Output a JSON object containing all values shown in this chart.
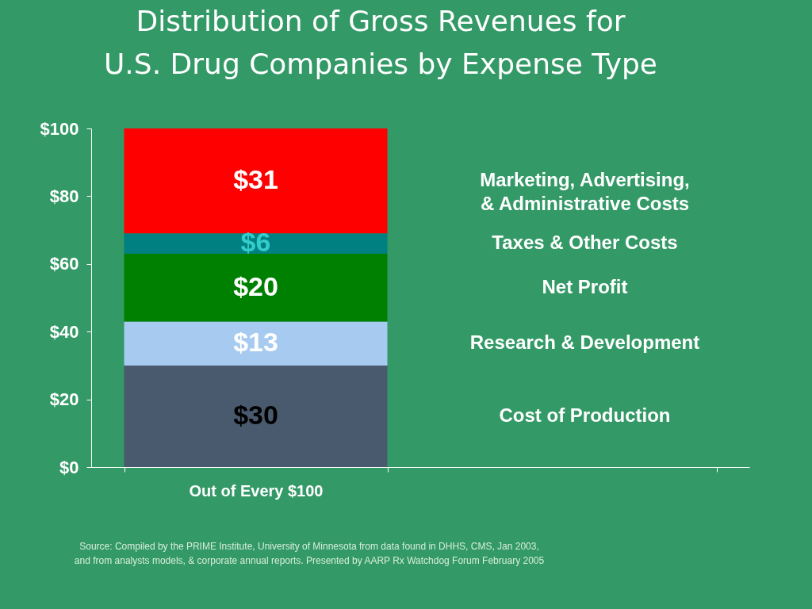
{
  "chart_data": {
    "type": "bar",
    "stacked": true,
    "title": "Distribution of Gross Revenues for U.S. Drug Companies by Expense Type",
    "categories": [
      "Out of Every $100",
      null
    ],
    "series": [
      {
        "name": "Cost of Production",
        "color": "#4a5a6e",
        "values": [
          30,
          null
        ],
        "value_labels": [
          "$30",
          null
        ]
      },
      {
        "name": "Research & Development",
        "color": "#a6caf0",
        "values": [
          13,
          null
        ],
        "value_labels": [
          "$13",
          null
        ]
      },
      {
        "name": "Net Profit",
        "color": "#008000",
        "values": [
          20,
          null
        ],
        "value_labels": [
          "$20",
          null
        ]
      },
      {
        "name": "Taxes & Other Costs",
        "color": "#008080",
        "values": [
          6,
          null
        ],
        "value_labels": [
          "$6",
          null
        ]
      },
      {
        "name": "Marketing, Advertising, & Administrative Costs",
        "color": "#ff0000",
        "values": [
          31,
          null
        ],
        "value_labels": [
          "$31",
          null
        ]
      }
    ],
    "ylim": [
      0,
      100
    ],
    "yticks": [
      {
        "value": 0,
        "label": "$0"
      },
      {
        "value": 20,
        "label": "$20"
      },
      {
        "value": 40,
        "label": "$40"
      },
      {
        "value": 60,
        "label": "$60"
      },
      {
        "value": 80,
        "label": "$80"
      },
      {
        "value": 100,
        "label": "$100"
      }
    ],
    "grid": false,
    "legend": false,
    "annotations": [
      "Source:  Compiled by the PRIME Institute, University of Minnesota from data found in DHHS, CMS, Jan 2003, and from analysts models, & corporate annual reports. Presented by AARP Rx Watchdog Forum February 2005"
    ]
  }
}
